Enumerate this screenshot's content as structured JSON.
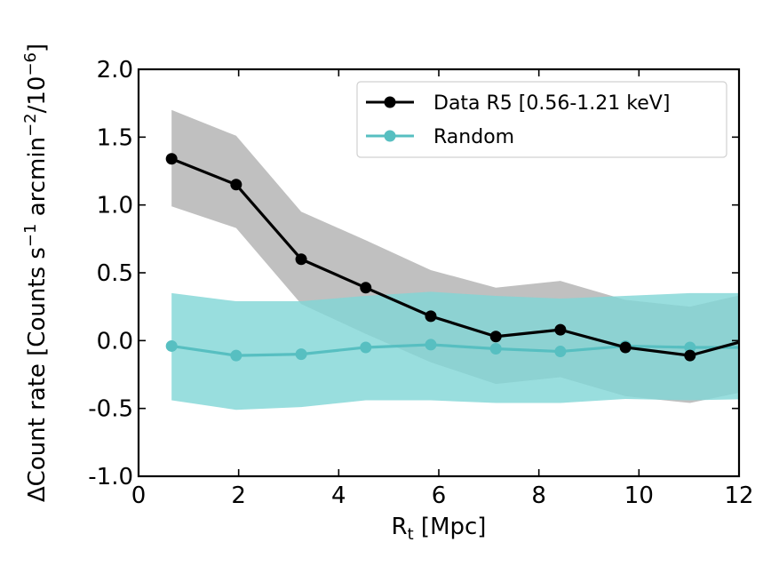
{
  "chart_data": {
    "type": "line",
    "title": "",
    "xlabel": "R_t [Mpc]",
    "xlabel_main": "R",
    "xlabel_sub": "t",
    "xlabel_rest": " [Mpc]",
    "ylabel": "ΔCount rate [Counts s^-1 arcmin^-2/10^-6]",
    "ylabel_parts": {
      "a": "ΔCount rate [Counts s",
      "sup1": "−1",
      "b": " arcmin",
      "sup2": "−2",
      "c": "/10",
      "sup3": "−6",
      "d": "]"
    },
    "xlim": [
      0,
      12
    ],
    "ylim": [
      -1.0,
      2.0
    ],
    "xticks": [
      0,
      2,
      4,
      6,
      8,
      10,
      12
    ],
    "xtick_labels": [
      "0",
      "2",
      "4",
      "6",
      "8",
      "10",
      "12"
    ],
    "yticks": [
      2.0,
      1.5,
      1.0,
      0.5,
      0.0,
      -0.5,
      -1.0
    ],
    "ytick_labels": [
      "2.0",
      "1.5",
      "1.0",
      "0.5",
      "0.0",
      "-0.5",
      "-1.0"
    ],
    "grid": false,
    "legend_position": "top-right",
    "x": [
      0.66,
      1.95,
      3.25,
      4.54,
      5.84,
      7.14,
      8.43,
      9.73,
      11.02,
      12.32
    ],
    "series": [
      {
        "name": "Data R5 [0.56-1.21 keV]",
        "color": "#000000",
        "band_color": "#c0c0c0",
        "values": [
          1.34,
          1.15,
          0.6,
          0.39,
          0.18,
          0.03,
          0.08,
          -0.05,
          -0.11,
          0.02
        ],
        "upper": [
          1.7,
          1.51,
          0.95,
          0.74,
          0.52,
          0.39,
          0.44,
          0.3,
          0.25,
          0.36
        ],
        "lower": [
          0.99,
          0.83,
          0.27,
          0.05,
          -0.16,
          -0.32,
          -0.27,
          -0.41,
          -0.46,
          -0.36
        ]
      },
      {
        "name": "Random",
        "color": "#57bfc1",
        "band_color": "#7fd6d6",
        "values": [
          -0.04,
          -0.11,
          -0.1,
          -0.05,
          -0.03,
          -0.06,
          -0.08,
          -0.04,
          -0.05,
          -0.05
        ],
        "upper": [
          0.35,
          0.29,
          0.29,
          0.33,
          0.36,
          0.33,
          0.31,
          0.33,
          0.35,
          0.35
        ],
        "lower": [
          -0.44,
          -0.51,
          -0.49,
          -0.44,
          -0.44,
          -0.46,
          -0.46,
          -0.43,
          -0.44,
          -0.43
        ]
      }
    ]
  }
}
